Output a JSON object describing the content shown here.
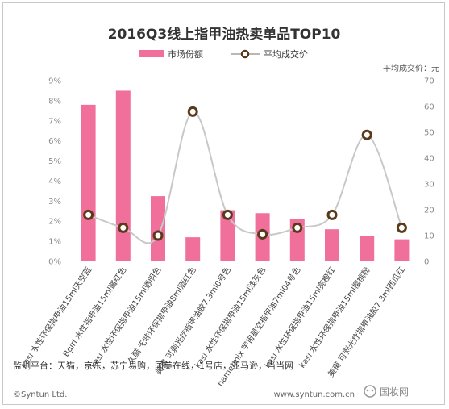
{
  "chart_data": {
    "type": "bar+line",
    "title": "2016Q3线上指甲油热卖单品TOP10",
    "legend": {
      "placement": "top",
      "entries": [
        "市场份额",
        "平均成交价"
      ]
    },
    "right_axis_title": "平均成交价：元",
    "left_axis": {
      "min": 0,
      "max": 9,
      "ticks": [
        "0%",
        "1%",
        "2%",
        "3%",
        "4%",
        "5%",
        "6%",
        "7%",
        "8%",
        "9%"
      ]
    },
    "right_axis": {
      "min": 0,
      "max": 70,
      "ticks": [
        "0",
        "10",
        "20",
        "30",
        "40",
        "50",
        "60",
        "70"
      ]
    },
    "grid": false,
    "categories": [
      "kasi 水性环保指甲油15ml天空蓝",
      "Bgirl 水性指甲油15ml酱红色",
      "kasi 水性环保指甲油15ml透明色",
      "久酷 无味环保指甲油8ml酒红色",
      "美甫 可剥光疗指甲油胶7.3ml0号色",
      "kasi 水性环保指甲油15ml浅灰色",
      "nametmix 宇宙星空指甲油7ml04号色",
      "kasi 水性环保指甲油15ml亮橙红",
      "kasi 水性环保指甲油15ml樱桃粉",
      "美甫 可剥光疗指甲油胶7.3ml西瓜红"
    ],
    "series": [
      {
        "name": "市场份额",
        "axis": "left",
        "unit": "%",
        "values": [
          7.8,
          8.5,
          3.25,
          1.2,
          2.55,
          2.4,
          2.1,
          1.6,
          1.25,
          1.1
        ]
      },
      {
        "name": "平均成交价",
        "axis": "right",
        "unit": "元",
        "values": [
          18,
          13,
          10,
          58,
          18,
          10.5,
          13,
          18,
          49,
          13
        ]
      }
    ]
  },
  "footer": {
    "platforms": "监测平台：天猫，京东，苏宁易购，国美在线，1号店，亚马逊，当当网",
    "copyright": "©Syntun Ltd.",
    "website": "www.syntun.com.cn",
    "watermark": "国妆网"
  },
  "colors": {
    "bar": "#f06f9b",
    "line": "#c8c8c8",
    "marker_fill": "#ffffff",
    "marker_stroke": "#5a3a1a"
  }
}
